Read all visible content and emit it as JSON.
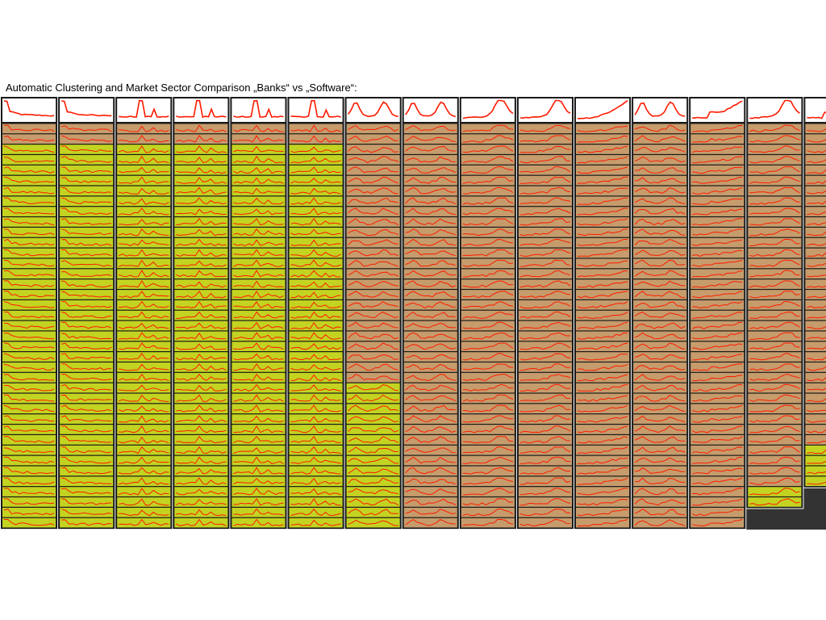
{
  "title": "Automatic Clustering and Market Sector Comparison „Banks“ vs „Software“:",
  "colors": {
    "banks": "#c3d321",
    "software": "#c69c6c",
    "header": "#ffffff",
    "line": "#ff1a00",
    "border": "#1a1a1a",
    "empty": "#333333"
  },
  "chart_data": {
    "type": "line",
    "clusters": [
      {
        "header_shape": "decay",
        "rows": 39,
        "software_rows": 2
      },
      {
        "header_shape": "decay",
        "rows": 39,
        "software_rows": 2
      },
      {
        "header_shape": "spike",
        "rows": 39,
        "software_rows": 2
      },
      {
        "header_shape": "spike",
        "rows": 39,
        "software_rows": 2
      },
      {
        "header_shape": "spike",
        "rows": 39,
        "software_rows": 2
      },
      {
        "header_shape": "spike",
        "rows": 39,
        "software_rows": 2
      },
      {
        "header_shape": "double",
        "rows": 39,
        "software_rows": 25
      },
      {
        "header_shape": "double",
        "rows": 39,
        "software_rows": 39
      },
      {
        "header_shape": "rise-peak",
        "rows": 39,
        "software_rows": 39
      },
      {
        "header_shape": "rise-peak",
        "rows": 39,
        "software_rows": 39
      },
      {
        "header_shape": "rise",
        "rows": 39,
        "software_rows": 39
      },
      {
        "header_shape": "double",
        "rows": 39,
        "software_rows": 39
      },
      {
        "header_shape": "step-rise",
        "rows": 39,
        "software_rows": 39
      },
      {
        "header_shape": "rise-peak",
        "rows": 37,
        "software_rows": 35
      },
      {
        "header_shape": "step-rise",
        "rows": 35,
        "software_rows": 31
      }
    ]
  }
}
